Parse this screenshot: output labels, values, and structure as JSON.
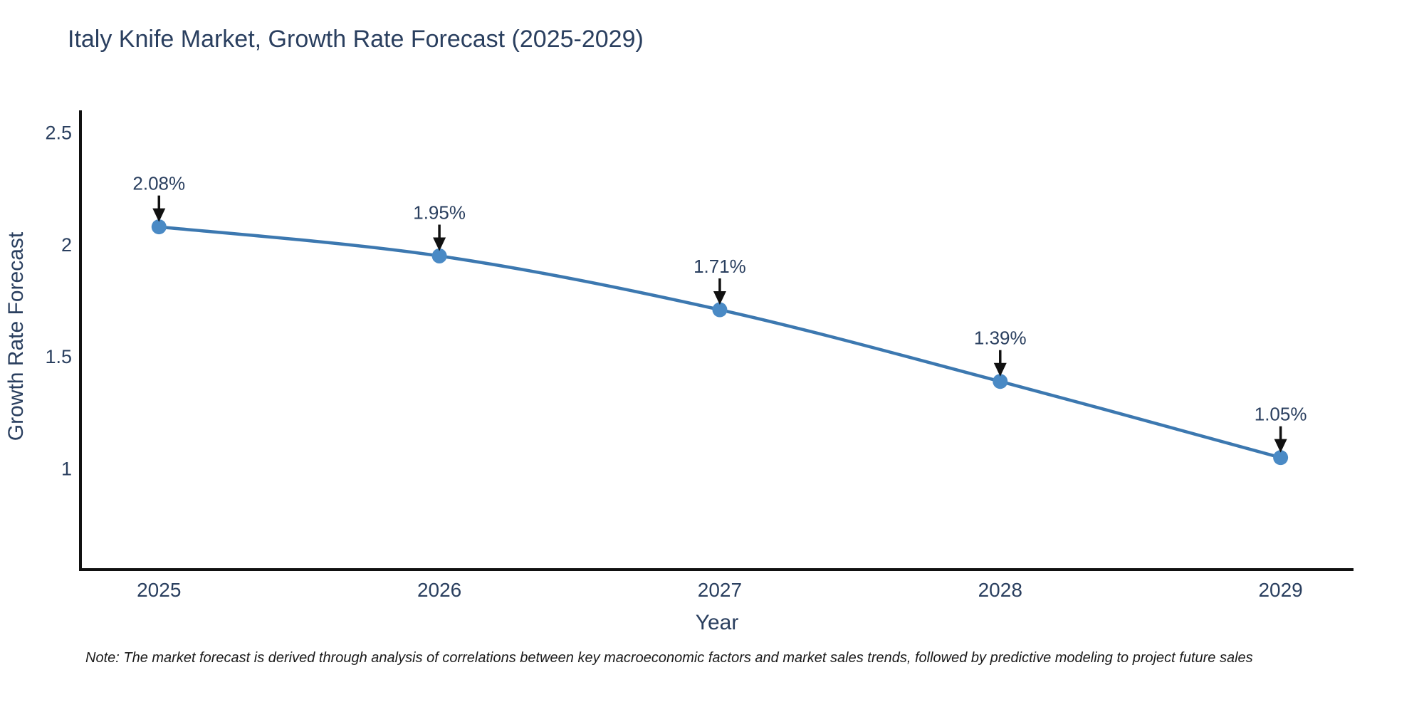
{
  "note": "Note: The market forecast is derived through analysis of correlations between key macroeconomic factors and market sales trends, followed by predictive modeling to project future sales",
  "chart_data": {
    "type": "line",
    "title": "Italy Knife Market, Growth Rate Forecast (2025-2029)",
    "xlabel": "Year",
    "ylabel": "Growth Rate Forecast",
    "x": [
      2025,
      2026,
      2027,
      2028,
      2029
    ],
    "values": [
      2.08,
      1.95,
      1.71,
      1.39,
      1.05
    ],
    "point_labels": [
      "2.08%",
      "1.95%",
      "1.71%",
      "1.39%",
      "1.05%"
    ],
    "x_ticks": [
      "2025",
      "2026",
      "2027",
      "2028",
      "2029"
    ],
    "y_ticks": [
      1,
      1.5,
      2,
      2.5
    ],
    "xlim": [
      2024.72,
      2029.26
    ],
    "ylim": [
      0.55,
      2.6
    ],
    "grid": false,
    "legend": false,
    "line_color": "#3c78b0",
    "marker_color": "#4a8ac5",
    "axis_color": "#111111",
    "arrow_color": "#111111",
    "text_color": "#2a3f5f"
  }
}
